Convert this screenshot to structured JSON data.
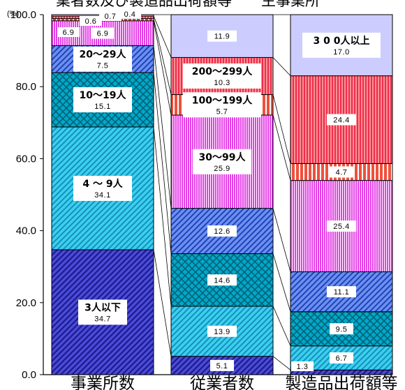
{
  "chart_data": {
    "type": "bar",
    "stacked": true,
    "percent_stacked": true,
    "title": "業者数及び製造品出荷額等　　主事業所",
    "unit_label": "(%)",
    "ylim": [
      0,
      100
    ],
    "yticks": [
      "0.0",
      "20.0",
      "40.0",
      "60.0",
      "80.0",
      "100.0"
    ],
    "categories": [
      "事業所数",
      "従業者数",
      "製造品出荷額等"
    ],
    "series": [
      {
        "name": "3人以下",
        "values": [
          34.7,
          5.1,
          1.3
        ]
      },
      {
        "name": "4～9人",
        "values": [
          34.1,
          13.9,
          6.7
        ]
      },
      {
        "name": "10～19人",
        "values": [
          15.1,
          14.6,
          9.5
        ]
      },
      {
        "name": "20～29人",
        "values": [
          7.5,
          12.6,
          11.1
        ]
      },
      {
        "name": "30～99人",
        "values": [
          6.9,
          25.9,
          25.4
        ]
      },
      {
        "name": "100～199人",
        "values": [
          0.6,
          5.7,
          4.7
        ]
      },
      {
        "name": "200～299人",
        "values": [
          0.7,
          10.3,
          24.4
        ]
      },
      {
        "name": "300人以上",
        "values": [
          0.4,
          11.9,
          17.0
        ]
      }
    ],
    "band_labels": [
      [
        "3人以下",
        "4 ～ 9人",
        "10～19人",
        "20～29人",
        "",
        "",
        "",
        ""
      ],
      [
        "",
        "",
        "",
        "",
        "30～99人",
        "100～199人",
        "200～299人",
        ""
      ],
      [
        "",
        "",
        "",
        "",
        "",
        "",
        "",
        "3 0 0人以上"
      ]
    ],
    "value_labels": [
      [
        "34.7",
        "34.1",
        "15.1",
        "7.5",
        "6.9",
        "0.6",
        "0.7",
        "0.4"
      ],
      [
        "5.1",
        "13.9",
        "14.6",
        "12.6",
        "25.9",
        "5.7",
        "10.3",
        "11.9"
      ],
      [
        "1.3",
        "6.7",
        "9.5",
        "11.1",
        "25.4",
        "4.7",
        "24.4",
        "17.0"
      ]
    ],
    "colors": [
      "#4b4bd6",
      "#3ccff0",
      "#00a8c8",
      "#6f8ff0",
      "#e43ee6",
      "#f0503c",
      "#ee2e4a",
      "#ccccff"
    ],
    "grid": false,
    "legend": "none"
  }
}
